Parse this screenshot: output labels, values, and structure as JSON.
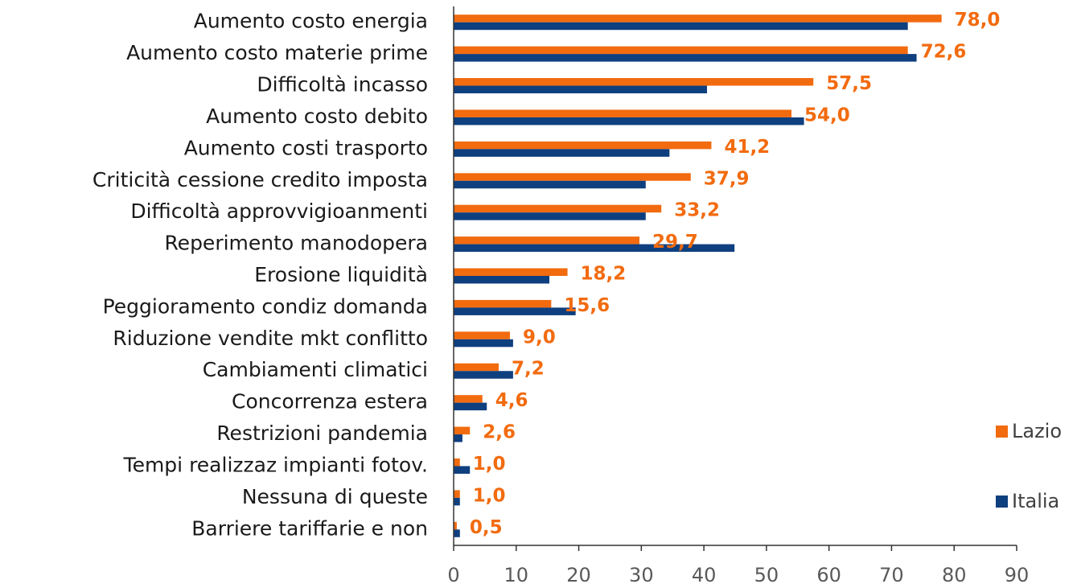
{
  "chart_data": {
    "type": "hbar",
    "categories": [
      "Aumento costo energia",
      "Aumento costo materie prime",
      "Difficoltà incasso",
      "Aumento costo debito",
      "Aumento costi trasporto",
      "Criticità cessione credito imposta",
      "Difficoltà approvvigioanmenti",
      "Reperimento manodopera",
      "Erosione liquidità",
      "Peggioramento condiz domanda",
      "Riduzione vendite mkt conflitto",
      "Cambiamenti climatici",
      "Concorrenza estera",
      "Restrizioni pandemia",
      "Tempi realizzaz impianti fotov.",
      "Nessuna di queste",
      "Barriere tariffarie e non"
    ],
    "series": [
      {
        "name": "Lazio",
        "color": "#f26b0f",
        "values": [
          78.0,
          72.6,
          57.5,
          54.0,
          41.2,
          37.9,
          33.2,
          29.7,
          18.2,
          15.6,
          9.0,
          7.2,
          4.6,
          2.6,
          1.0,
          1.0,
          0.5
        ],
        "value_labels": [
          "78,0",
          "72,6",
          "57,5",
          "54,0",
          "41,2",
          "37,9",
          "33,2",
          "29,7",
          "18,2",
          "15,6",
          "9,0",
          "7,2",
          "4,6",
          "2,6",
          "1,0",
          "1,0",
          "0,5"
        ]
      },
      {
        "name": "Italia",
        "color": "#0e3f7f",
        "values": [
          72.6,
          74,
          40.5,
          56,
          34.5,
          30.7,
          30.7,
          44.9,
          15.3,
          19.5,
          9.5,
          9.5,
          5.3,
          1.4,
          2.6,
          1.0,
          1.0
        ]
      }
    ],
    "xlim": [
      0,
      90
    ],
    "xticks": [
      0,
      10,
      20,
      30,
      40,
      50,
      60,
      70,
      80,
      90
    ],
    "grid": false,
    "legend": "right"
  }
}
